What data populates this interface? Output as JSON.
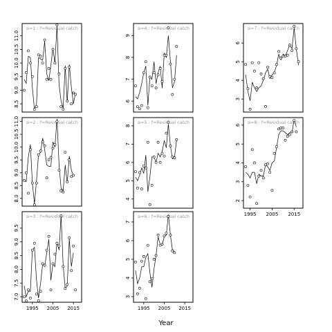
{
  "chart_data": {
    "type": "scatter",
    "title": "",
    "xlabel": "Year",
    "panels": [
      {
        "label": "a=1 : f=Residual catch",
        "xlim": [
          1990,
          2019
        ],
        "ylim": [
          8.2,
          11.45
        ],
        "xticks": [],
        "yticks": [
          8.5,
          9.0,
          9.5,
          10.0,
          10.5,
          11.0
        ],
        "fitted": {
          "x": [
            1991,
            1992,
            1993,
            1994,
            1995,
            1996,
            1997,
            1998,
            1999,
            2000,
            2001,
            2002,
            2003,
            2004,
            2005,
            2006,
            2007,
            2008,
            2009,
            2010,
            2011,
            2012,
            2013,
            2014,
            2015,
            2016,
            2017
          ],
          "y": [
            9.4,
            9.25,
            10.25,
            10.2,
            9.1,
            8.3,
            8.5,
            10.2,
            10.15,
            10.1,
            10.8,
            9.6,
            9.35,
            9.9,
            10.55,
            10.0,
            11.35,
            9.2,
            8.6,
            8.35,
            9.9,
            8.55,
            9.95,
            9.1,
            8.5,
            8.9,
            null
          ]
        },
        "observed": {
          "x": [
            1991,
            1992,
            1993,
            1994,
            1995,
            1996,
            1997,
            1998,
            1999,
            2000,
            2001,
            2002,
            2003,
            2004,
            2005,
            2006,
            2007,
            2008,
            2009,
            2010,
            2011,
            2012,
            2013,
            2014,
            2015,
            2016
          ],
          "y": [
            9.0,
            9.65,
            10.45,
            10.0,
            9.5,
            8.3,
            8.4,
            10.3,
            10.25,
            10.0,
            10.85,
            9.4,
            9.8,
            9.4,
            10.5,
            10.0,
            11.4,
            9.6,
            8.4,
            8.3,
            9.8,
            8.6,
            9.85,
            8.5,
            8.9,
            8.85
          ]
        }
      },
      {
        "label": "a=2 : f=Residual catch",
        "xlim": [
          1990,
          2019
        ],
        "ylim": [
          7.7,
          11.15
        ],
        "xticks": [],
        "yticks": [
          8.0,
          8.5,
          9.0,
          9.5,
          10.0,
          10.5,
          11.0
        ],
        "fitted": {
          "x": [
            1991,
            1992,
            1993,
            1994,
            1995,
            1996,
            1997,
            1998,
            1999,
            2000,
            2001,
            2002,
            2003,
            2004,
            2005,
            2006,
            2007,
            2008,
            2009,
            2010,
            2011,
            2012,
            2013,
            2014,
            2015,
            2016
          ],
          "y": [
            8.7,
            8.65,
            9.6,
            10.1,
            8.6,
            7.8,
            8.7,
            9.7,
            9.8,
            10.35,
            9.9,
            9.3,
            9.25,
            9.25,
            10.2,
            10.0,
            11.1,
            9.3,
            8.4,
            8.3,
            9.3,
            8.6,
            9.65,
            9.1,
            8.9,
            null
          ]
        },
        "observed": {
          "x": [
            1991,
            1992,
            1993,
            1994,
            1995,
            1996,
            1997,
            1998,
            1999,
            2000,
            2001,
            2002,
            2003,
            2004,
            2005,
            2006,
            2007,
            2008,
            2009,
            2010,
            2011,
            2012,
            2013,
            2014,
            2015
          ],
          "y": [
            8.7,
            9.0,
            8.2,
            9.9,
            8.6,
            7.75,
            8.6,
            9.7,
            9.85,
            10.2,
            10.05,
            8.8,
            9.5,
            9.6,
            9.95,
            10.1,
            11.0,
            9.1,
            8.3,
            8.25,
            9.8,
            8.65,
            9.5,
            8.85,
            8.9
          ]
        }
      },
      {
        "label": "a=3 : f=Residual catch",
        "xlim": [
          1990,
          2019
        ],
        "ylim": [
          6.8,
          10.1
        ],
        "xticks": [
          1995,
          2005,
          2015
        ],
        "yticks": [
          7.0,
          7.5,
          8.0,
          8.5,
          9.0,
          9.5
        ],
        "fitted": {
          "x": [
            1991,
            1992,
            1993,
            1994,
            1995,
            1996,
            1997,
            1998,
            1999,
            2000,
            2001,
            2002,
            2003,
            2004,
            2005,
            2006,
            2007,
            2008,
            2009,
            2010,
            2011,
            2012,
            2013,
            2014,
            2015,
            2016,
            2017,
            2018
          ],
          "y": [
            7.4,
            7.0,
            7.2,
            7.2,
            8.7,
            8.8,
            7.6,
            6.95,
            7.5,
            8.2,
            8.1,
            8.6,
            9.1,
            7.6,
            8.2,
            8.1,
            9.0,
            8.7,
            9.95,
            8.15,
            7.3,
            7.4,
            9.1,
            8.1,
            8.6,
            null,
            null,
            null
          ]
        },
        "observed": {
          "x": [
            1991,
            1992,
            1993,
            1994,
            1995,
            1996,
            1997,
            1998,
            1999,
            2000,
            2001,
            2002,
            2003,
            2004,
            2005,
            2006,
            2007,
            2008,
            2009,
            2010,
            2011,
            2012,
            2013,
            2014,
            2015,
            2016
          ],
          "y": [
            7.0,
            6.85,
            7.25,
            6.95,
            8.7,
            8.95,
            7.1,
            6.85,
            7.2,
            8.2,
            8.15,
            8.7,
            9.2,
            7.25,
            8.2,
            8.55,
            8.95,
            8.85,
            9.95,
            8.1,
            7.3,
            7.45,
            9.15,
            7.95,
            8.85,
            7.25
          ]
        }
      },
      {
        "label": "a=4 : f=Residual catch",
        "xlim": [
          1990,
          2019
        ],
        "ylim": [
          5.5,
          9.55
        ],
        "xticks": [],
        "yticks": [
          6,
          7,
          8,
          9
        ],
        "fitted": {
          "x": [
            1991,
            1992,
            1993,
            1994,
            1995,
            1996,
            1997,
            1998,
            1999,
            2000,
            2001,
            2002,
            2003,
            2004,
            2005,
            2006,
            2007,
            2008,
            2009,
            2010,
            2011,
            2012,
            2013,
            2014,
            2015,
            2016
          ],
          "y": [
            6.2,
            6.1,
            6.4,
            6.8,
            7.3,
            7.6,
            5.8,
            7.1,
            7.0,
            7.8,
            6.8,
            7.3,
            7.6,
            6.6,
            8.2,
            8.0,
            9.0,
            7.8,
            6.6,
            6.9,
            8.1,
            null,
            null,
            null,
            null,
            null
          ]
        },
        "observed": {
          "x": [
            1991,
            1992,
            1993,
            1994,
            1995,
            1996,
            1997,
            1998,
            1999,
            2000,
            2001,
            2002,
            2003,
            2004,
            2005,
            2006,
            2007,
            2008,
            2009,
            2010,
            2011
          ],
          "y": [
            6.7,
            5.75,
            5.65,
            5.8,
            7.3,
            7.8,
            5.7,
            7.1,
            6.7,
            7.3,
            6.6,
            7.2,
            7.5,
            6.9,
            8.1,
            8.1,
            9.35,
            7.7,
            6.3,
            7.0,
            8.5
          ]
        }
      },
      {
        "label": "a=5 : f=Residual catch",
        "xlim": [
          1990,
          2019
        ],
        "ylim": [
          3.5,
          8.45
        ],
        "xticks": [],
        "yticks": [
          4,
          5,
          6,
          7,
          8
        ],
        "fitted": {
          "x": [
            1991,
            1992,
            1993,
            1994,
            1995,
            1996,
            1997,
            1998,
            1999,
            2000,
            2001,
            2002,
            2003,
            2004,
            2005,
            2006,
            2007,
            2008,
            2009,
            2010,
            2011,
            2012,
            2013,
            2014,
            2015,
            2016
          ],
          "y": [
            5.2,
            5.0,
            5.3,
            5.7,
            5.4,
            6.4,
            4.4,
            5.2,
            6.3,
            6.3,
            6.0,
            6.5,
            6.3,
            6.6,
            7.2,
            6.8,
            8.1,
            6.9,
            6.2,
            6.3,
            7.2,
            null,
            null,
            null,
            null,
            null
          ]
        },
        "observed": {
          "x": [
            1991,
            1992,
            1993,
            1994,
            1995,
            1996,
            1997,
            1998,
            1999,
            2000,
            2001,
            2002,
            2003,
            2004,
            2005,
            2006,
            2007,
            2008,
            2009,
            2010,
            2011
          ],
          "y": [
            5.5,
            4.6,
            5.45,
            4.55,
            5.8,
            5.7,
            7.1,
            3.7,
            4.75,
            6.3,
            6.0,
            7.1,
            6.0,
            6.5,
            6.35,
            7.6,
            8.2,
            6.9,
            6.3,
            6.25,
            7.25
          ]
        }
      },
      {
        "label": "a=6 : f=Residual catch",
        "xlim": [
          1990,
          2019
        ],
        "ylim": [
          2.7,
          7.55
        ],
        "xticks": [
          1995,
          2005,
          2015
        ],
        "yticks": [
          3,
          4,
          5,
          6,
          7
        ],
        "fitted": {
          "x": [
            1991,
            1992,
            1993,
            1994,
            1995,
            1996,
            1997,
            1998,
            1999,
            2000,
            2001,
            2002,
            2003,
            2004,
            2005,
            2006,
            2007,
            2008,
            2009,
            2010,
            2011,
            2012,
            2013,
            2014,
            2015,
            2016
          ],
          "y": [
            4.4,
            3.7,
            4.0,
            4.6,
            4.6,
            5.1,
            5.3,
            4.3,
            3.5,
            4.5,
            5.2,
            6.2,
            5.8,
            5.8,
            6.2,
            6.3,
            7.4,
            6.3,
            5.5,
            5.4,
            null,
            null,
            null,
            null,
            null,
            null
          ]
        },
        "observed": {
          "x": [
            1991,
            1992,
            1993,
            1994,
            1995,
            1996,
            1997,
            1998,
            1999,
            2000,
            2001,
            2002,
            2003,
            2004,
            2005,
            2006,
            2007,
            2008,
            2009,
            2010
          ],
          "y": [
            4.85,
            3.15,
            3.45,
            4.9,
            5.15,
            2.9,
            5.75,
            3.8,
            3.95,
            5.0,
            5.2,
            6.3,
            5.75,
            5.8,
            6.25,
            6.4,
            7.3,
            6.3,
            5.45,
            5.35
          ]
        }
      },
      {
        "label": "a=7 : f=Residual catch",
        "xlim": [
          1992,
          2019
        ],
        "ylim": [
          2.3,
          7.05
        ],
        "xticks": [],
        "yticks": [
          3,
          4,
          5,
          6
        ],
        "fitted": {
          "x": [
            1993,
            1994,
            1995,
            1996,
            1997,
            1998,
            1999,
            2000,
            2001,
            2002,
            2003,
            2004,
            2005,
            2006,
            2007,
            2008,
            2009,
            2010,
            2011,
            2012,
            2013,
            2014,
            2015,
            2016,
            2017,
            2018
          ],
          "y": [
            4.3,
            3.4,
            2.9,
            3.9,
            3.6,
            3.4,
            3.6,
            3.7,
            4.0,
            4.4,
            4.6,
            4.1,
            4.3,
            4.4,
            4.8,
            5.4,
            5.1,
            5.4,
            5.3,
            5.6,
            5.9,
            5.7,
            6.8,
            5.7,
            4.8,
            null
          ]
        },
        "observed": {
          "x": [
            1993,
            1994,
            1995,
            1996,
            1997,
            1998,
            1999,
            2000,
            2001,
            2002,
            2003,
            2004,
            2005,
            2006,
            2007,
            2008,
            2009,
            2010,
            2011,
            2012,
            2013,
            2014,
            2015,
            2016,
            2017
          ],
          "y": [
            4.85,
            3.55,
            2.45,
            4.95,
            4.5,
            3.6,
            4.95,
            4.35,
            4.1,
            2.6,
            4.7,
            4.2,
            4.15,
            4.4,
            4.85,
            5.55,
            5.2,
            5.3,
            5.3,
            5.35,
            5.9,
            5.6,
            6.9,
            5.7,
            5.0
          ]
        }
      },
      {
        "label": "a=8 : f=Residual catch",
        "xlim": [
          1992,
          2019
        ],
        "ylim": [
          1.6,
          6.4
        ],
        "xticks": [
          1995,
          2005,
          2015
        ],
        "yticks": [
          2,
          3,
          4,
          5,
          6
        ],
        "fitted": {
          "x": [
            1993,
            1994,
            1995,
            1996,
            1997,
            1998,
            1999,
            2000,
            2001,
            2002,
            2003,
            2004,
            2005,
            2006,
            2007,
            2008,
            2009,
            2010,
            2011,
            2012,
            2013,
            2014,
            2015,
            2016,
            2017
          ],
          "y": [
            3.5,
            3.4,
            3.2,
            3.5,
            3.5,
            2.9,
            3.4,
            3.3,
            3.3,
            3.9,
            3.8,
            3.6,
            4.0,
            4.1,
            4.8,
            5.5,
            5.7,
            5.7,
            5.6,
            5.5,
            5.6,
            5.6,
            6.3,
            5.9,
            null
          ]
        },
        "observed": {
          "x": [
            1993,
            1994,
            1995,
            1996,
            1997,
            1998,
            1999,
            2000,
            2001,
            2002,
            2003,
            2004,
            2005,
            2006,
            2007,
            2008,
            2009,
            2010,
            2011,
            2012,
            2013,
            2014,
            2015,
            2016
          ],
          "y": [
            3.8,
            2.8,
            2.2,
            4.7,
            4.0,
            1.85,
            3.3,
            3.6,
            3.2,
            3.9,
            3.95,
            3.5,
            2.55,
            4.5,
            4.85,
            5.8,
            5.85,
            5.85,
            5.2,
            5.4,
            5.5,
            5.65,
            6.25,
            5.65
          ]
        }
      }
    ]
  }
}
